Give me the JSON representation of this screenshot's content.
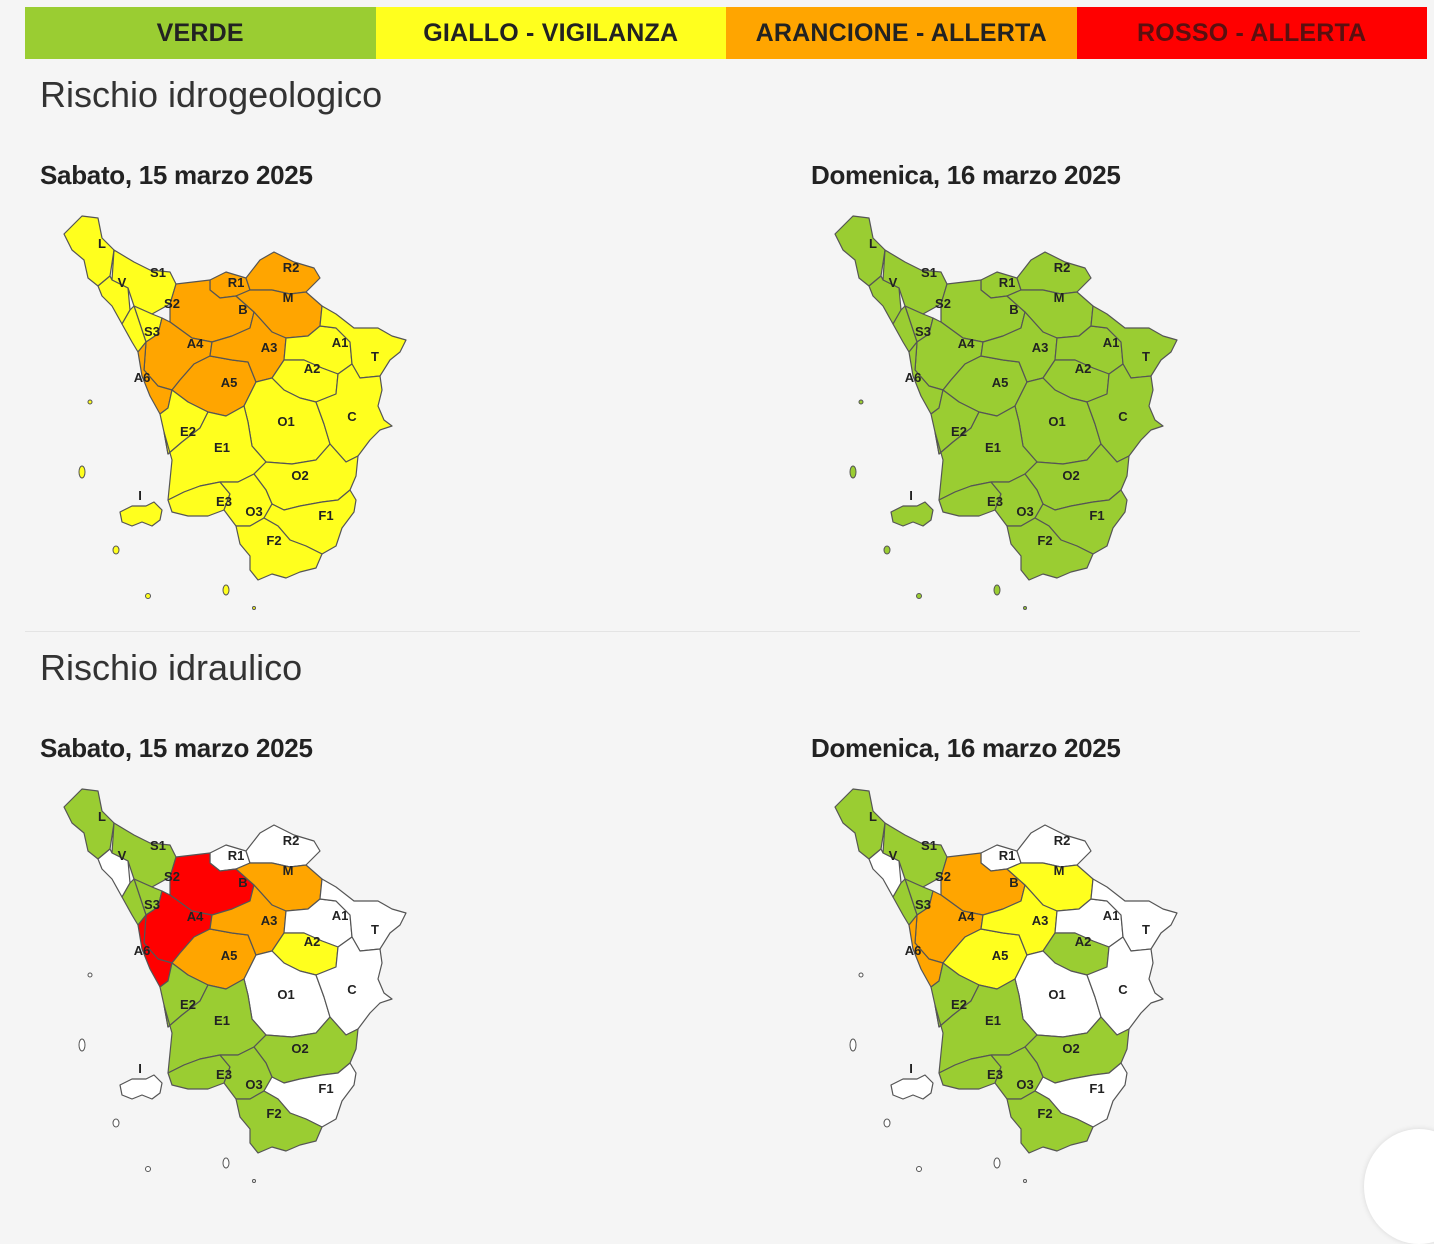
{
  "legend": [
    {
      "label": "VERDE",
      "color": "#9ACD32",
      "text_color": "#222222"
    },
    {
      "label": "GIALLO - VIGILANZA",
      "color": "#FFFF1E",
      "text_color": "#222222"
    },
    {
      "label": "ARANCIONE - ALLERTA",
      "color": "#FFA500",
      "text_color": "#222222"
    },
    {
      "label": "ROSSO - ALLERTA",
      "color": "#FF0000",
      "text_color": "#5a1010"
    }
  ],
  "level_colors": {
    "none": "#FFFFFF",
    "verde": "#9ACD32",
    "giallo": "#FFFF1E",
    "arancione": "#FFA500",
    "rosso": "#FF0000"
  },
  "sections": [
    {
      "title": "Rischio idrogeologico",
      "maps": [
        {
          "date": "Sabato, 15 marzo 2025",
          "zones": {
            "L": "giallo",
            "S1": "giallo",
            "V": "giallo",
            "S2": "giallo",
            "S3": "giallo",
            "R1": "arancione",
            "R2": "arancione",
            "B": "arancione",
            "M": "arancione",
            "A4": "arancione",
            "A6": "arancione",
            "A5": "arancione",
            "A3": "arancione",
            "A1": "giallo",
            "T": "giallo",
            "A2": "giallo",
            "O1": "giallo",
            "C": "giallo",
            "E2": "giallo",
            "E1": "giallo",
            "O2": "giallo",
            "E3": "giallo",
            "O3": "giallo",
            "F1": "giallo",
            "F2": "giallo",
            "I": "giallo"
          }
        },
        {
          "date": "Domenica, 16 marzo 2025",
          "zones": {
            "L": "verde",
            "S1": "verde",
            "V": "verde",
            "S2": "verde",
            "S3": "verde",
            "R1": "verde",
            "R2": "verde",
            "B": "verde",
            "M": "verde",
            "A4": "verde",
            "A6": "verde",
            "A5": "verde",
            "A3": "verde",
            "A1": "verde",
            "T": "verde",
            "A2": "verde",
            "O1": "verde",
            "C": "verde",
            "E2": "verde",
            "E1": "verde",
            "O2": "verde",
            "E3": "verde",
            "O3": "verde",
            "F1": "verde",
            "F2": "verde",
            "I": "verde"
          }
        }
      ]
    },
    {
      "title": "Rischio idraulico",
      "maps": [
        {
          "date": "Sabato, 15 marzo 2025",
          "zones": {
            "L": "verde",
            "S1": "verde",
            "V": "none",
            "S2": "verde",
            "S3": "verde",
            "R1": "none",
            "R2": "none",
            "B": "rosso",
            "M": "arancione",
            "A4": "rosso",
            "A6": "rosso",
            "A5": "arancione",
            "A3": "arancione",
            "A1": "none",
            "T": "none",
            "A2": "giallo",
            "O1": "none",
            "C": "none",
            "E2": "verde",
            "E1": "verde",
            "O2": "verde",
            "E3": "verde",
            "O3": "verde",
            "F1": "none",
            "F2": "verde",
            "I": "none"
          }
        },
        {
          "date": "Domenica, 16 marzo 2025",
          "zones": {
            "L": "verde",
            "S1": "verde",
            "V": "none",
            "S2": "verde",
            "S3": "verde",
            "R1": "none",
            "R2": "none",
            "B": "arancione",
            "M": "giallo",
            "A4": "arancione",
            "A6": "arancione",
            "A5": "giallo",
            "A3": "giallo",
            "A1": "none",
            "T": "none",
            "A2": "verde",
            "O1": "none",
            "C": "none",
            "E2": "verde",
            "E1": "verde",
            "O2": "verde",
            "E3": "verde",
            "O3": "verde",
            "F1": "none",
            "F2": "verde",
            "I": "none"
          }
        }
      ]
    }
  ]
}
